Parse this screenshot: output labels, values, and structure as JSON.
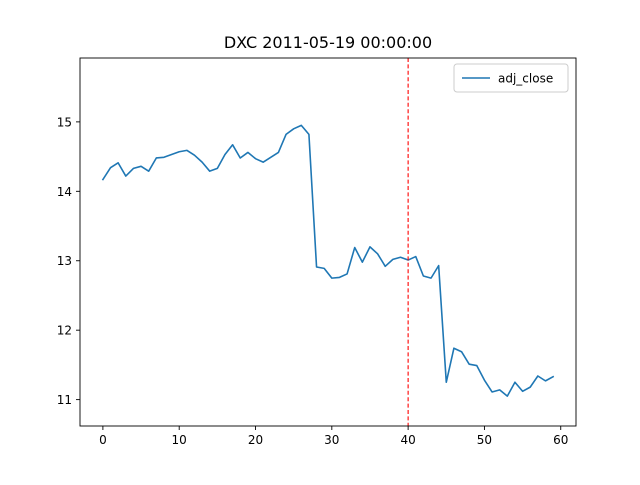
{
  "chart_data": {
    "type": "line",
    "title": "DXC 2011-05-19 00:00:00",
    "xlabel": "",
    "ylabel": "",
    "xlim": [
      -3,
      62
    ],
    "ylim": [
      10.62,
      15.92
    ],
    "x_ticks": [
      0,
      10,
      20,
      30,
      40,
      50,
      60
    ],
    "y_ticks": [
      11,
      12,
      13,
      14,
      15
    ],
    "grid": false,
    "legend": {
      "placement": "top-right",
      "entries": [
        "adj_close"
      ]
    },
    "series": [
      {
        "name": "adj_close",
        "color": "#1f77b4",
        "x": [
          0,
          1,
          2,
          3,
          4,
          5,
          6,
          7,
          8,
          9,
          10,
          11,
          12,
          13,
          14,
          15,
          16,
          17,
          18,
          19,
          20,
          21,
          22,
          23,
          24,
          25,
          26,
          27,
          28,
          29,
          30,
          31,
          32,
          33,
          34,
          35,
          36,
          37,
          38,
          39,
          40,
          41,
          42,
          43,
          44,
          45,
          46,
          47,
          48,
          49,
          50,
          51,
          52,
          53,
          54,
          55,
          56,
          57,
          58,
          59
        ],
        "values": [
          14.17,
          14.34,
          14.41,
          14.22,
          14.33,
          14.36,
          14.29,
          14.48,
          14.49,
          14.53,
          14.57,
          14.59,
          14.52,
          14.42,
          14.29,
          14.33,
          14.53,
          14.67,
          14.48,
          14.56,
          14.47,
          14.42,
          14.49,
          14.56,
          14.82,
          14.9,
          14.95,
          14.82,
          12.91,
          12.89,
          12.75,
          12.76,
          12.81,
          13.19,
          12.98,
          13.2,
          13.1,
          12.92,
          13.02,
          13.05,
          13.01,
          13.06,
          12.78,
          12.75,
          12.93,
          11.25,
          11.74,
          11.69,
          11.51,
          11.49,
          11.28,
          11.11,
          11.14,
          11.05,
          11.25,
          11.12,
          11.18,
          11.34,
          11.27,
          11.33
        ]
      }
    ],
    "annotations": [
      {
        "type": "vline",
        "x": 40,
        "color": "#ff0000",
        "style": "dashed"
      }
    ]
  }
}
